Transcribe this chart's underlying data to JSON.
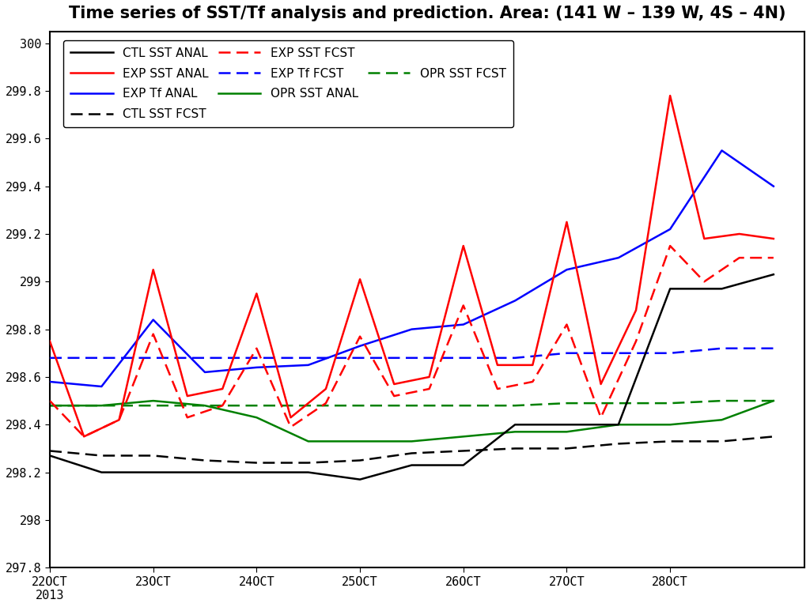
{
  "title": "Time series of SST/Tf analysis and prediction. Area: (141 W – 139 W, 4S – 4N)",
  "xlim": [
    22,
    29.3
  ],
  "ylim": [
    297.8,
    300.05
  ],
  "yticks": [
    297.8,
    298,
    298.2,
    298.4,
    298.6,
    298.8,
    299,
    299.2,
    299.4,
    299.6,
    299.8,
    300
  ],
  "ytick_labels": [
    "297.8",
    "298",
    "298.2",
    "298.4",
    "298.6",
    "298.8",
    "299",
    "299.2",
    "299.4",
    "299.6",
    "299.8",
    "300"
  ],
  "xtick_positions": [
    22,
    23,
    24,
    25,
    26,
    27,
    28
  ],
  "xtick_labels": [
    "22OCT\n2013",
    "23OCT",
    "24OCT",
    "25OCT",
    "26OCT",
    "27OCT",
    "28OCT"
  ],
  "ctl_sst_anal_x": [
    22.0,
    22.5,
    23.0,
    23.5,
    24.0,
    24.5,
    25.0,
    25.5,
    26.0,
    26.5,
    27.0,
    27.5,
    28.0,
    28.5,
    29.0
  ],
  "ctl_sst_anal_y": [
    298.27,
    298.2,
    298.2,
    298.2,
    298.2,
    298.2,
    298.17,
    298.23,
    298.23,
    298.4,
    298.4,
    298.4,
    298.97,
    298.97,
    299.03
  ],
  "ctl_sst_fcst_x": [
    22.0,
    22.5,
    23.0,
    23.5,
    24.0,
    24.5,
    25.0,
    25.5,
    26.0,
    26.5,
    27.0,
    27.5,
    28.0,
    28.5,
    29.0
  ],
  "ctl_sst_fcst_y": [
    298.29,
    298.27,
    298.27,
    298.25,
    298.24,
    298.24,
    298.25,
    298.28,
    298.29,
    298.3,
    298.3,
    298.32,
    298.33,
    298.33,
    298.35
  ],
  "exp_sst_anal_x": [
    22.0,
    22.33,
    22.67,
    23.0,
    23.33,
    23.67,
    24.0,
    24.33,
    24.67,
    25.0,
    25.33,
    25.67,
    26.0,
    26.33,
    26.67,
    27.0,
    27.33,
    27.67,
    28.0,
    28.33,
    28.67,
    29.0
  ],
  "exp_sst_anal_y": [
    298.75,
    298.35,
    298.42,
    299.05,
    298.52,
    298.55,
    298.95,
    298.43,
    298.55,
    299.01,
    298.57,
    298.6,
    299.15,
    298.65,
    298.65,
    299.25,
    298.57,
    298.88,
    299.78,
    299.18,
    299.2,
    299.18
  ],
  "exp_sst_fcst_x": [
    22.0,
    22.33,
    22.67,
    23.0,
    23.33,
    23.67,
    24.0,
    24.33,
    24.67,
    25.0,
    25.33,
    25.67,
    26.0,
    26.33,
    26.67,
    27.0,
    27.33,
    27.67,
    28.0,
    28.33,
    28.67,
    29.0
  ],
  "exp_sst_fcst_y": [
    298.5,
    298.35,
    298.42,
    298.78,
    298.43,
    298.48,
    298.72,
    298.39,
    298.49,
    298.77,
    298.52,
    298.55,
    298.9,
    298.55,
    298.58,
    298.82,
    298.43,
    298.75,
    299.15,
    299.0,
    299.1,
    299.1
  ],
  "exp_tf_anal_x": [
    22.0,
    22.5,
    23.0,
    23.5,
    24.0,
    24.5,
    25.0,
    25.5,
    26.0,
    26.5,
    27.0,
    27.5,
    28.0,
    28.5,
    29.0
  ],
  "exp_tf_anal_y": [
    298.58,
    298.56,
    298.84,
    298.62,
    298.64,
    298.65,
    298.73,
    298.8,
    298.82,
    298.92,
    299.05,
    299.1,
    299.22,
    299.55,
    299.4
  ],
  "exp_tf_fcst_x": [
    22.0,
    22.5,
    23.0,
    23.5,
    24.0,
    24.5,
    25.0,
    25.5,
    26.0,
    26.5,
    27.0,
    27.5,
    28.0,
    28.5,
    29.0
  ],
  "exp_tf_fcst_y": [
    298.68,
    298.68,
    298.68,
    298.68,
    298.68,
    298.68,
    298.68,
    298.68,
    298.68,
    298.68,
    298.7,
    298.7,
    298.7,
    298.72,
    298.72
  ],
  "opr_sst_anal_x": [
    22.0,
    22.5,
    23.0,
    23.5,
    24.0,
    24.5,
    25.0,
    25.5,
    26.0,
    26.5,
    27.0,
    27.5,
    28.0,
    28.5,
    29.0
  ],
  "opr_sst_anal_y": [
    298.48,
    298.48,
    298.5,
    298.48,
    298.43,
    298.33,
    298.33,
    298.33,
    298.35,
    298.37,
    298.37,
    298.4,
    298.4,
    298.42,
    298.5
  ],
  "opr_sst_fcst_x": [
    22.0,
    22.5,
    23.0,
    23.5,
    24.0,
    24.5,
    25.0,
    25.5,
    26.0,
    26.5,
    27.0,
    27.5,
    28.0,
    28.5,
    29.0
  ],
  "opr_sst_fcst_y": [
    298.48,
    298.48,
    298.48,
    298.48,
    298.48,
    298.48,
    298.48,
    298.48,
    298.48,
    298.48,
    298.49,
    298.49,
    298.49,
    298.5,
    298.5
  ],
  "background_color": "#ffffff",
  "linewidth": 1.8,
  "title_fontsize": 15,
  "tick_fontsize": 11
}
